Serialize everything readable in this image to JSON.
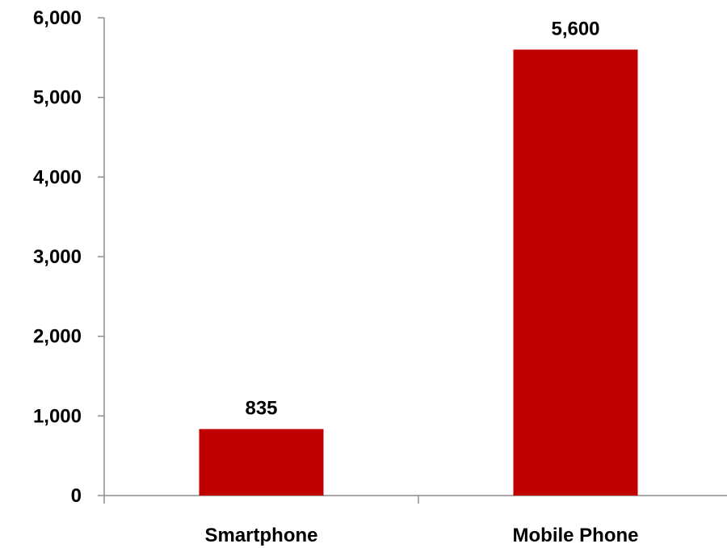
{
  "chart_data": {
    "type": "bar",
    "categories": [
      "Smartphone",
      "Mobile Phone"
    ],
    "values": [
      835,
      5600
    ],
    "data_labels": [
      "835",
      "5,600"
    ],
    "ylim": [
      0,
      6000
    ],
    "yticks": [
      0,
      1000,
      2000,
      3000,
      4000,
      5000,
      6000
    ],
    "ytick_labels": [
      "0",
      "1,000",
      "2,000",
      "3,000",
      "4,000",
      "5,000",
      "6,000"
    ],
    "title": "",
    "xlabel": "",
    "ylabel": "",
    "grid": false,
    "legend": "none",
    "bar_color": "#c00000"
  }
}
